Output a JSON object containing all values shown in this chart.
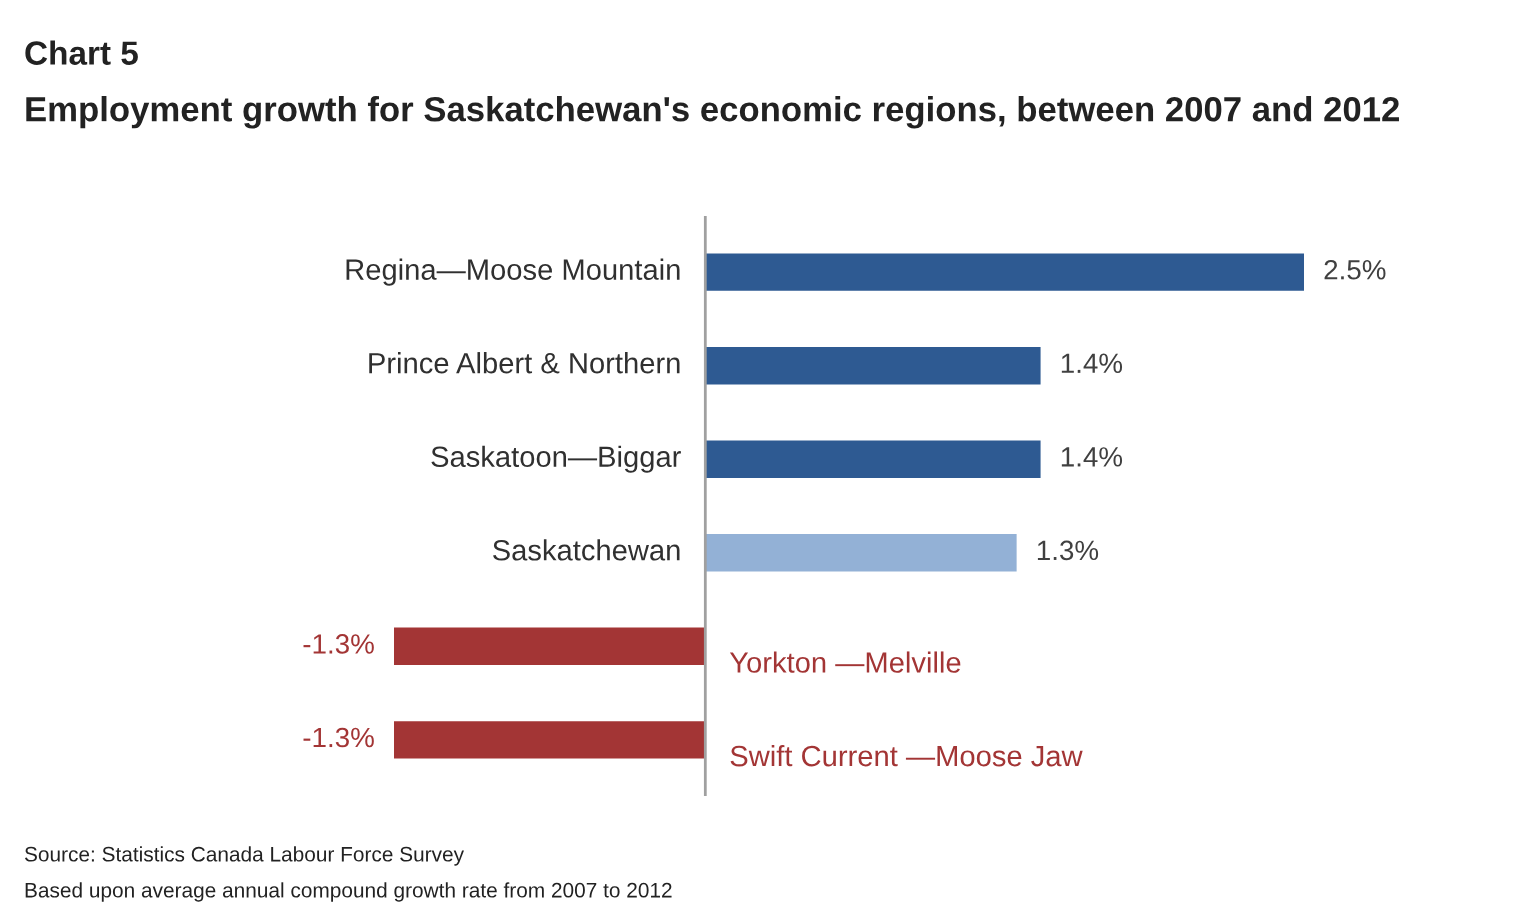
{
  "chart_data": {
    "type": "bar",
    "orientation": "horizontal",
    "title": "Chart 5",
    "subtitle": "Employment growth for Saskatchewan's economic regions, between 2007 and 2012",
    "categories": [
      "Regina—Moose Mountain",
      "Prince Albert & Northern",
      "Saskatoon—Biggar",
      "Saskatchewan",
      "Yorkton —Melville",
      "Swift Current —Moose Jaw"
    ],
    "values": [
      2.5,
      1.4,
      1.4,
      1.3,
      -1.3,
      -1.3
    ],
    "colors": [
      "#2e5a92",
      "#2e5a92",
      "#2e5a92",
      "#93b1d6",
      "#a33535",
      "#a33535"
    ],
    "value_labels": [
      "2.5%",
      "1.4%",
      "1.4%",
      "1.3%",
      "-1.3%",
      "-1.3%"
    ],
    "annotations": [
      "Source: Statistics Canada Labour Force Survey",
      "Based upon average annual compound growth rate from 2007 to 2012"
    ]
  }
}
